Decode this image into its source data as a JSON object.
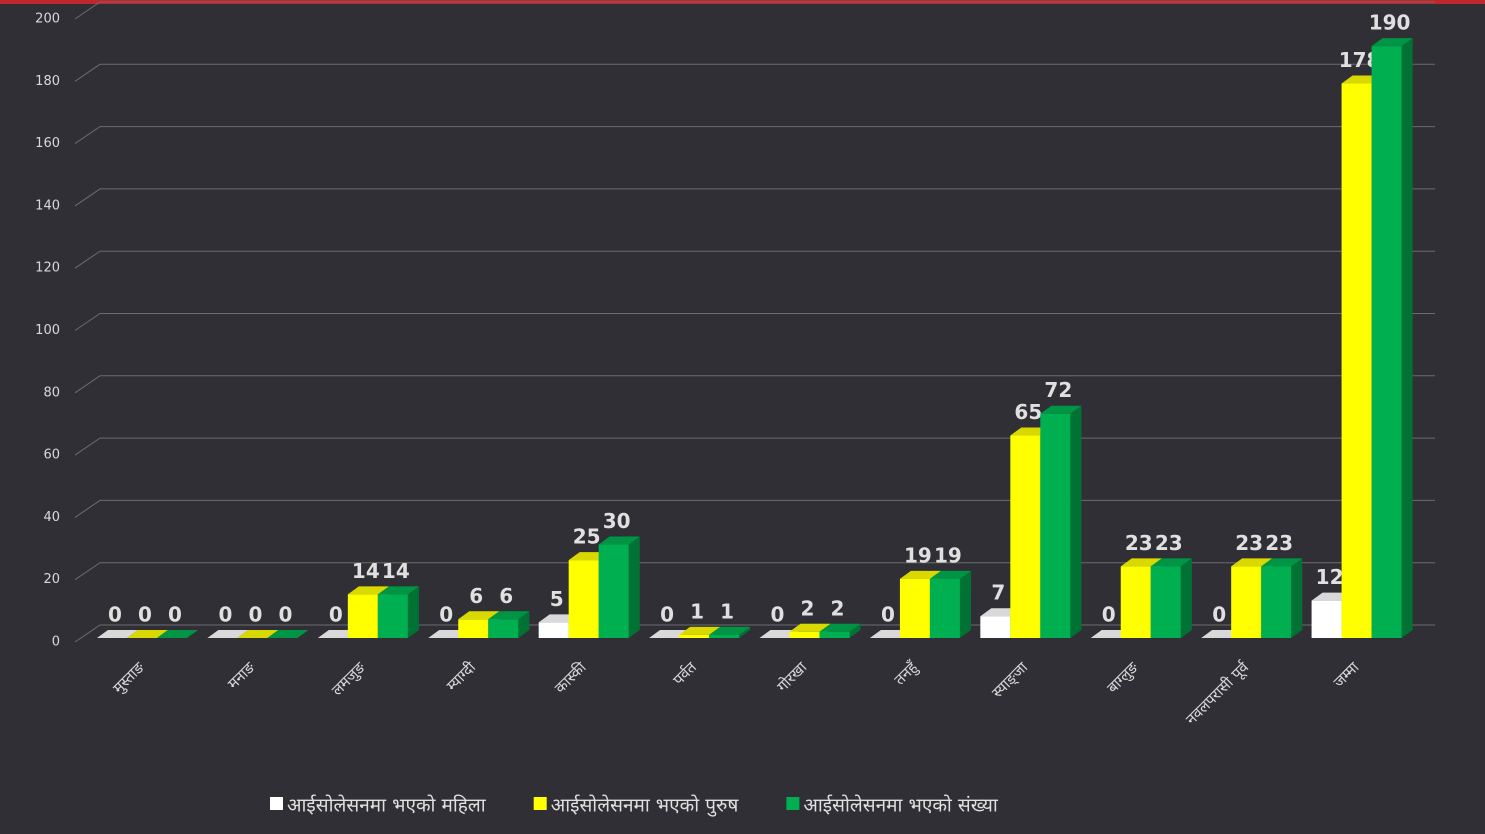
{
  "chart_data": {
    "type": "bar3d",
    "categories": [
      "मुस्ताङ",
      "मनाङ",
      "लमजुङ",
      "म्याग्दी",
      "कास्की",
      "पर्वत",
      "गोरखा",
      "तनहुँ",
      "स्याङ्जा",
      "बाग्लुङ",
      "नवलपरासी  पूर्व",
      "जम्मा"
    ],
    "series": [
      {
        "name": "आईसोलेसनमा भएको महिला",
        "color": "#ffffff",
        "values": [
          0,
          0,
          0,
          0,
          5,
          0,
          0,
          0,
          7,
          0,
          0,
          12
        ]
      },
      {
        "name": "आईसोलेसनमा भएको पुरुष",
        "color": "#ffff00",
        "values": [
          0,
          0,
          14,
          6,
          25,
          1,
          2,
          19,
          65,
          23,
          23,
          178
        ]
      },
      {
        "name": "आईसोलेसनमा भएको संख्या",
        "color": "#00b050",
        "values": [
          0,
          0,
          14,
          6,
          30,
          1,
          2,
          19,
          72,
          23,
          23,
          190
        ]
      }
    ],
    "ylim": [
      0,
      200
    ],
    "yticks": [
      0,
      20,
      40,
      60,
      80,
      100,
      120,
      140,
      160,
      180,
      200
    ],
    "grid": true
  }
}
